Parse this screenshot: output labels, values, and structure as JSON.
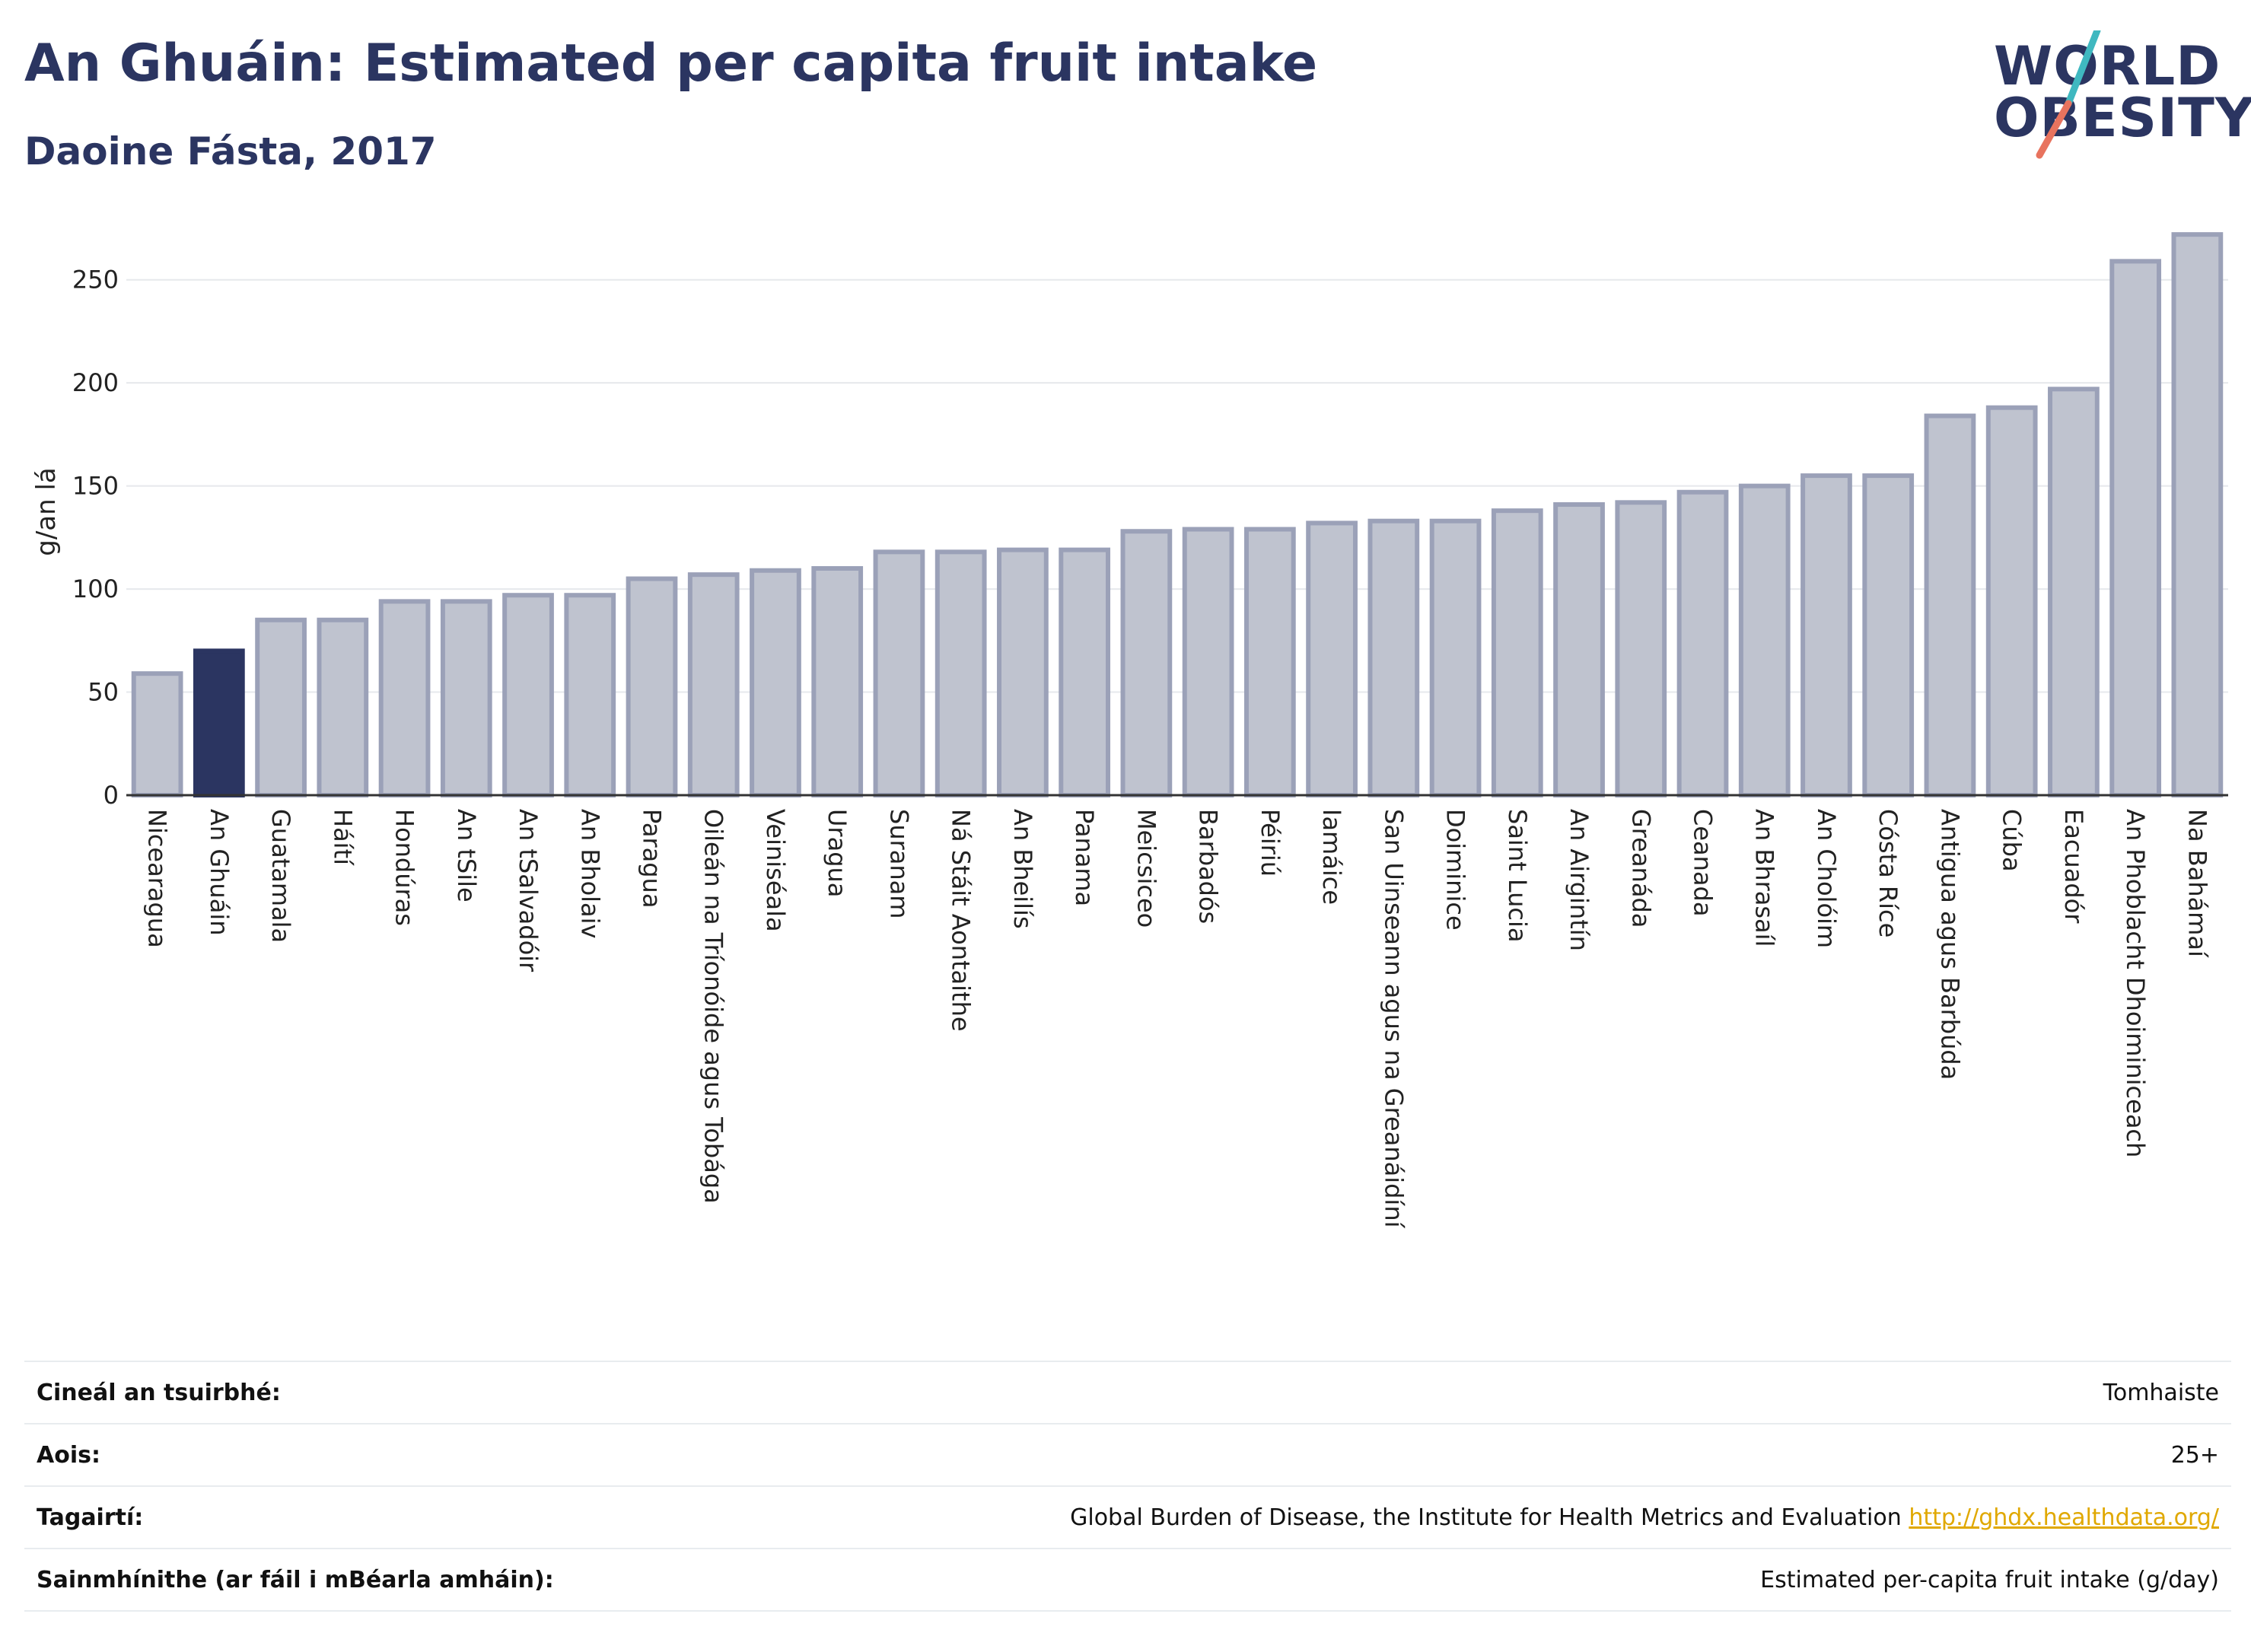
{
  "header": {
    "title": "An Ghuáin: Estimated per capita fruit intake",
    "subtitle": "Daoine Fásta, 2017"
  },
  "logo": {
    "line1": "WORLD",
    "line2": "OBESITY",
    "colors": {
      "text": "#2b3561",
      "slash_top": "#3fb8c0",
      "slash_bottom": "#e8735e"
    }
  },
  "colors": {
    "highlight": "#2b3561",
    "bar_fill": "#bfc3cf",
    "bar_stroke": "#9ba1b8",
    "grid": "#e6e8ec",
    "axis": "#333333"
  },
  "chart_data": {
    "type": "bar",
    "ylabel": "g/an lá",
    "xlabel": "",
    "ylim": [
      0,
      275
    ],
    "yticks": [
      0,
      50,
      100,
      150,
      200,
      250
    ],
    "grid": true,
    "highlight_category": "An Ghuáin",
    "categories": [
      "Nicearagua",
      "An Ghuáin",
      "Guatamala",
      "Háítí",
      "Hondúras",
      "An tSile",
      "An tSalvadóir",
      "An Bholaiv",
      "Paragua",
      "Oileán na Tríonóide agus Tobága",
      "Veiniséala",
      "Uragua",
      "Suranam",
      "Ná Stáit Aontaithe",
      "An Bheilís",
      "Panama",
      "Meicsiceo",
      "Barbadós",
      "Péiriú",
      "Iamáice",
      "San Uinseann agus na Greanáidíní",
      "Doiminice",
      "Saint Lucia",
      "An Airgintín",
      "Greanáda",
      "Ceanada",
      "An Bhrasaíl",
      "An Cholóim",
      "Cósta Ríce",
      "Antigua agus Barbúda",
      "Cúba",
      "Eacuadór",
      "An Phoblacht Dhoiminiceach",
      "Na Bahámaí"
    ],
    "values": [
      59,
      70,
      85,
      85,
      94,
      94,
      97,
      97,
      105,
      107,
      109,
      110,
      118,
      118,
      119,
      119,
      128,
      129,
      129,
      132,
      133,
      133,
      138,
      141,
      142,
      147,
      150,
      155,
      155,
      184,
      188,
      197,
      259,
      272
    ]
  },
  "info": {
    "rows": [
      {
        "key": "Cineál an tsuirbhé:",
        "value": "Tomhaiste"
      },
      {
        "key": "Aois:",
        "value": "25+"
      },
      {
        "key": "Tagairtí:",
        "value": "Global Burden of Disease, the Institute for Health Metrics and Evaluation",
        "link": "http://ghdx.healthdata.org/"
      },
      {
        "key": "Sainmhínithe (ar fáil i mBéarla amháin):",
        "value": "Estimated per-capita fruit intake (g/day)"
      }
    ]
  }
}
